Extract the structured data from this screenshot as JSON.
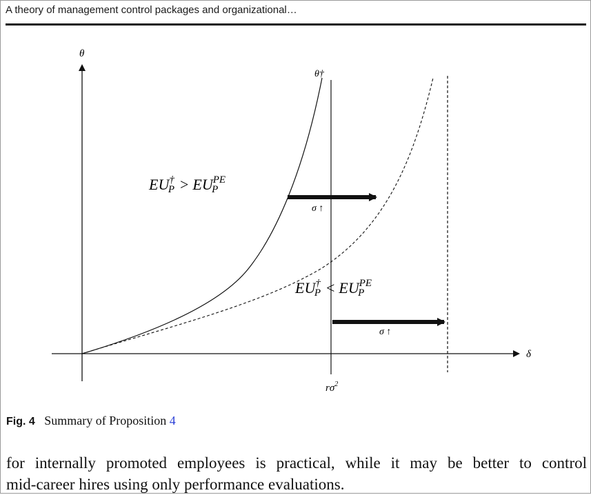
{
  "running_head": "A theory of management control packages and organizational…",
  "figure": {
    "y_axis_label": "θ",
    "x_axis_label": "δ",
    "curve_label": "θ†",
    "vline_label_base": "rσ",
    "vline_label_sup": "2",
    "region_upper": {
      "lhs": "EU",
      "lhs_sup": "†",
      "lhs_sub": "P",
      "op": ">",
      "rhs": "EU",
      "rhs_sup": "PE",
      "rhs_sub": "P"
    },
    "region_lower": {
      "lhs": "EU",
      "lhs_sup": "†",
      "lhs_sub": "P",
      "op": "<",
      "rhs": "EU",
      "rhs_sup": "PE",
      "rhs_sub": "P"
    },
    "arrow_upper_label": "σ ↑",
    "arrow_lower_label": "σ ↑"
  },
  "caption": {
    "label": "Fig. 4",
    "text": "Summary of Proposition",
    "ref": "4"
  },
  "body": {
    "line1": "for internally promoted employees is practical, while it may be better to control",
    "line2": "mid-career hires using only performance evaluations."
  },
  "colors": {
    "ink": "#111111",
    "link": "#2a3fd6",
    "border": "#9a9a9a"
  }
}
